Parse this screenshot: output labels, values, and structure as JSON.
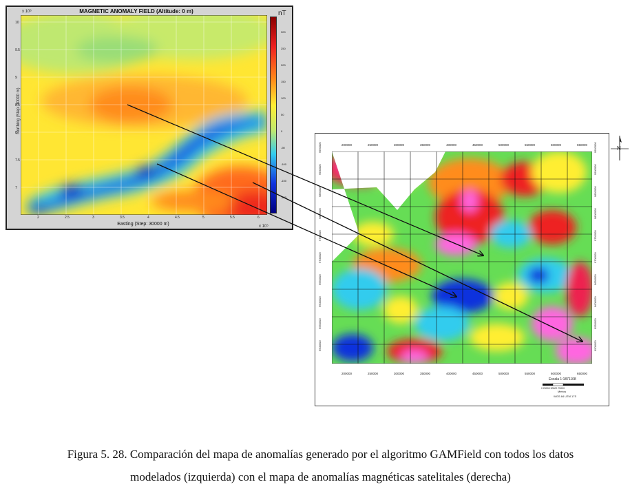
{
  "left_map": {
    "title": "MAGNETIC ANOMALY FIELD (Altitude: 0 m)",
    "colorbar_unit": "nT",
    "colorbar_ticks": [
      "300",
      "250",
      "200",
      "150",
      "100",
      "50",
      "0",
      "-50",
      "-100",
      "-150",
      "-200"
    ],
    "x_axis_label": "Easting (Step: 30000 m)",
    "y_axis_label": "Northing (Step: 30000 m)",
    "x_exponent": "x 10⁵",
    "y_exponent": "x 10⁶",
    "x_ticks": [
      "2",
      "2.5",
      "3",
      "3.5",
      "4",
      "4.5",
      "5",
      "5.5",
      "6"
    ],
    "y_ticks": [
      "10",
      "9.5",
      "9",
      "8.5",
      "8",
      "7.5",
      "7"
    ]
  },
  "right_map": {
    "x_ticks": [
      "200000",
      "250000",
      "300000",
      "350000",
      "400000",
      "450000",
      "500000",
      "550000",
      "600000",
      "650000"
    ],
    "y_ticks": [
      "9950000",
      "9900000",
      "9850000",
      "9800000",
      "9750000",
      "9700000",
      "9650000",
      "9600000",
      "9550000",
      "9500000"
    ],
    "scale_label": "Escala 1:1871108",
    "scale_numbers": "0 25000 50000 75000",
    "scale_sub1": "Metros",
    "scale_sub2": "WGS 84 UTM 17S",
    "north_label": "N"
  },
  "caption": {
    "line1": "Figura 5. 28. Comparación del mapa de anomalías generado por el algoritmo GAMField con todos los datos",
    "line2": "modelados (izquierda) con el mapa de anomalías magnéticas satelitales (derecha)"
  },
  "colors": {
    "magenta": "#ff66e0",
    "red": "#ee2020",
    "orange": "#ff8c1a",
    "yellow": "#ffee33",
    "green": "#66dd55",
    "cyan": "#33ccee",
    "blue": "#1133dd"
  }
}
